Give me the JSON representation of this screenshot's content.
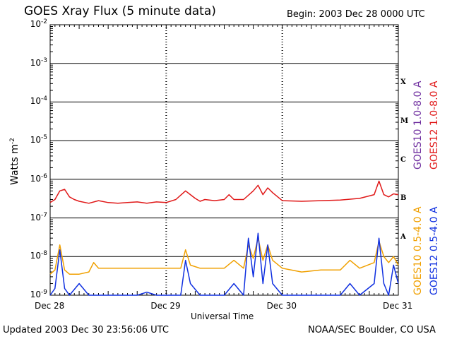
{
  "header": {
    "title": "GOES Xray Flux (5 minute data)",
    "begin": "Begin:  2003 Dec 28 0000 UTC"
  },
  "footer": {
    "updated": "Updated 2003 Dec 30 23:56:06 UTC",
    "credit": "NOAA/SEC Boulder, CO USA"
  },
  "colors": {
    "goes10_long": "#7030a0",
    "goes12_long": "#e01818",
    "goes10_short": "#f0a000",
    "goes12_short": "#1030e0"
  },
  "chart_data": {
    "type": "line",
    "title": "GOES Xray Flux (5 minute data)",
    "xlabel": "Universal Time",
    "ylabel_base": "Watts m",
    "ylabel_exp": "-2",
    "y_scale": "log",
    "ylim": [
      1e-09,
      0.01
    ],
    "y_ticks": [
      {
        "base": "10",
        "exp": "-9"
      },
      {
        "base": "10",
        "exp": "-8"
      },
      {
        "base": "10",
        "exp": "-7"
      },
      {
        "base": "10",
        "exp": "-6"
      },
      {
        "base": "10",
        "exp": "-5"
      },
      {
        "base": "10",
        "exp": "-4"
      },
      {
        "base": "10",
        "exp": "-3"
      },
      {
        "base": "10",
        "exp": "-2"
      }
    ],
    "x_range": [
      "2003-12-28T00:00",
      "2003-12-31T00:00"
    ],
    "x_ticks": [
      "Dec 28",
      "Dec 29",
      "Dec 30",
      "Dec 31"
    ],
    "flare_classes": [
      "A",
      "B",
      "C",
      "M",
      "X"
    ],
    "grid": true,
    "legend": [
      "GOES10 1.0-8.0 A",
      "GOES12 1.0-8.0 A",
      "GOES10 0.5-4.0 A",
      "GOES12 0.5-4.0 A"
    ],
    "series": [
      {
        "name": "GOES12 1.0-8.0 A",
        "x": [
          "2003-12-28T00:00",
          "2003-12-28T01:00",
          "2003-12-28T02:00",
          "2003-12-28T03:00",
          "2003-12-28T04:00",
          "2003-12-28T05:00",
          "2003-12-28T06:00",
          "2003-12-28T08:00",
          "2003-12-28T10:00",
          "2003-12-28T12:00",
          "2003-12-28T14:00",
          "2003-12-28T16:00",
          "2003-12-28T18:00",
          "2003-12-28T20:00",
          "2003-12-28T22:00",
          "2003-12-29T00:00",
          "2003-12-29T02:00",
          "2003-12-29T04:00",
          "2003-12-29T05:00",
          "2003-12-29T06:00",
          "2003-12-29T07:00",
          "2003-12-29T08:00",
          "2003-12-29T10:00",
          "2003-12-29T12:00",
          "2003-12-29T13:00",
          "2003-12-29T14:00",
          "2003-12-29T16:00",
          "2003-12-29T18:00",
          "2003-12-29T19:00",
          "2003-12-29T20:00",
          "2003-12-29T21:00",
          "2003-12-29T22:00",
          "2003-12-30T00:00",
          "2003-12-30T04:00",
          "2003-12-30T08:00",
          "2003-12-30T12:00",
          "2003-12-30T16:00",
          "2003-12-30T19:00",
          "2003-12-30T20:00",
          "2003-12-30T21:00",
          "2003-12-30T22:00",
          "2003-12-30T23:00",
          "2003-12-31T00:00"
        ],
        "y": [
          2.5e-07,
          3e-07,
          5e-07,
          5.5e-07,
          3.5e-07,
          3e-07,
          2.7e-07,
          2.4e-07,
          2.8e-07,
          2.5e-07,
          2.4e-07,
          2.5e-07,
          2.6e-07,
          2.4e-07,
          2.6e-07,
          2.5e-07,
          3e-07,
          5e-07,
          4e-07,
          3.2e-07,
          2.7e-07,
          3e-07,
          2.8e-07,
          3e-07,
          4e-07,
          3e-07,
          3e-07,
          5e-07,
          7e-07,
          4e-07,
          6e-07,
          4.5e-07,
          2.8e-07,
          2.7e-07,
          2.8e-07,
          2.9e-07,
          3.2e-07,
          4e-07,
          9e-07,
          4e-07,
          3.5e-07,
          4.2e-07,
          4e-07
        ]
      },
      {
        "name": "GOES10 0.5-4.0 A",
        "x": [
          "2003-12-28T00:00",
          "2003-12-28T01:00",
          "2003-12-28T02:00",
          "2003-12-28T03:00",
          "2003-12-28T04:00",
          "2003-12-28T06:00",
          "2003-12-28T08:00",
          "2003-12-28T09:00",
          "2003-12-28T10:00",
          "2003-12-28T12:00",
          "2003-12-28T14:00",
          "2003-12-28T16:00",
          "2003-12-28T18:00",
          "2003-12-28T20:00",
          "2003-12-28T22:00",
          "2003-12-29T00:00",
          "2003-12-29T03:00",
          "2003-12-29T04:00",
          "2003-12-29T05:00",
          "2003-12-29T07:00",
          "2003-12-29T09:00",
          "2003-12-29T12:00",
          "2003-12-29T14:00",
          "2003-12-29T16:00",
          "2003-12-29T17:00",
          "2003-12-29T18:00",
          "2003-12-29T19:00",
          "2003-12-29T20:00",
          "2003-12-29T21:00",
          "2003-12-29T22:00",
          "2003-12-30T00:00",
          "2003-12-30T04:00",
          "2003-12-30T08:00",
          "2003-12-30T12:00",
          "2003-12-30T14:00",
          "2003-12-30T16:00",
          "2003-12-30T19:00",
          "2003-12-30T20:00",
          "2003-12-30T21:00",
          "2003-12-30T22:00",
          "2003-12-30T23:00",
          "2003-12-31T00:00"
        ],
        "y": [
          3.5e-09,
          4.5e-09,
          2e-08,
          4.5e-09,
          3.5e-09,
          3.5e-09,
          4e-09,
          7e-09,
          5e-09,
          5e-09,
          5e-09,
          5e-09,
          5e-09,
          5e-09,
          5e-09,
          5e-09,
          5e-09,
          1.5e-08,
          6e-09,
          5e-09,
          5e-09,
          5e-09,
          8e-09,
          5e-09,
          2e-08,
          9e-09,
          3e-08,
          8e-09,
          2e-08,
          8e-09,
          5e-09,
          4e-09,
          4.5e-09,
          4.5e-09,
          8e-09,
          5e-09,
          7e-09,
          2.5e-08,
          1e-08,
          7e-09,
          1e-08,
          6e-09
        ]
      },
      {
        "name": "GOES12 0.5-4.0 A",
        "x": [
          "2003-12-28T00:00",
          "2003-12-28T01:00",
          "2003-12-28T02:00",
          "2003-12-28T03:00",
          "2003-12-28T04:00",
          "2003-12-28T06:00",
          "2003-12-28T08:00",
          "2003-12-28T10:00",
          "2003-12-28T12:00",
          "2003-12-28T14:00",
          "2003-12-28T16:00",
          "2003-12-28T18:00",
          "2003-12-28T20:00",
          "2003-12-28T22:00",
          "2003-12-29T00:00",
          "2003-12-29T03:00",
          "2003-12-29T04:00",
          "2003-12-29T05:00",
          "2003-12-29T07:00",
          "2003-12-29T09:00",
          "2003-12-29T12:00",
          "2003-12-29T14:00",
          "2003-12-29T16:00",
          "2003-12-29T17:00",
          "2003-12-29T18:00",
          "2003-12-29T19:00",
          "2003-12-29T20:00",
          "2003-12-29T21:00",
          "2003-12-29T22:00",
          "2003-12-30T00:00",
          "2003-12-30T04:00",
          "2003-12-30T08:00",
          "2003-12-30T12:00",
          "2003-12-30T14:00",
          "2003-12-30T16:00",
          "2003-12-30T19:00",
          "2003-12-30T20:00",
          "2003-12-30T21:00",
          "2003-12-30T22:00",
          "2003-12-30T23:00",
          "2003-12-31T00:00"
        ],
        "y": [
          1e-09,
          1.5e-09,
          1.5e-08,
          1.5e-09,
          1e-09,
          2e-09,
          1e-09,
          1e-09,
          1e-09,
          1e-09,
          1e-09,
          1e-09,
          1.2e-09,
          1e-09,
          1e-09,
          1e-09,
          8e-09,
          2e-09,
          1e-09,
          1e-09,
          1e-09,
          2e-09,
          1e-09,
          3e-08,
          3e-09,
          4e-08,
          2e-09,
          2e-08,
          2e-09,
          1e-09,
          1e-09,
          1e-09,
          1e-09,
          2e-09,
          1e-09,
          2e-09,
          3e-08,
          2e-09,
          1e-09,
          6e-09,
          2e-09
        ]
      }
    ]
  }
}
